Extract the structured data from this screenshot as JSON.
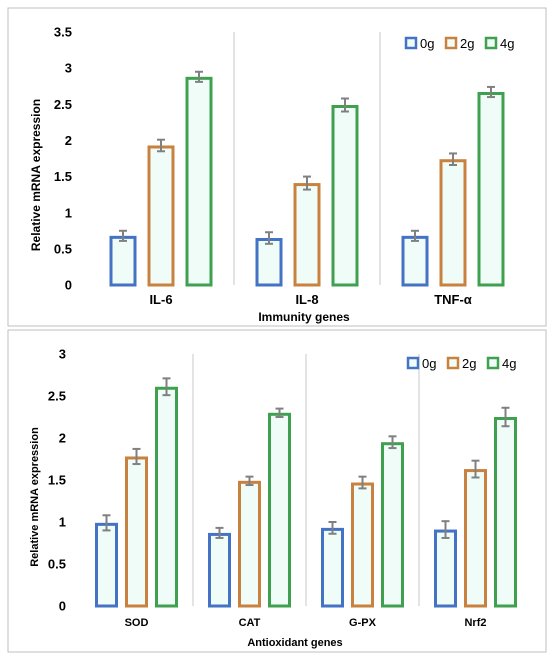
{
  "series_colors": {
    "0g": "#4472c4",
    "2g": "#c8813e",
    "4g": "#3fa04f"
  },
  "bar_fill": "#effcf8",
  "error_bar_color": "#808080",
  "divider_color": "#c8c8c8",
  "chart_data": [
    {
      "type": "bar",
      "xlabel": "Immunity genes",
      "ylabel": "Relative mRNA expression",
      "ylim": [
        0,
        3.5
      ],
      "yticks": [
        "0",
        "0.5",
        "1",
        "1.5",
        "2",
        "2.5",
        "3",
        "3.5"
      ],
      "categories": [
        "IL-6",
        "IL-8",
        "TNF-α"
      ],
      "legend": {
        "placement": "top-right",
        "entries": [
          "0g",
          "2g",
          "4g"
        ]
      },
      "series": [
        {
          "name": "0g",
          "values": [
            0.68,
            0.65,
            0.68
          ],
          "errors": [
            0.07,
            0.08,
            0.07
          ]
        },
        {
          "name": "2g",
          "values": [
            1.93,
            1.41,
            1.74
          ],
          "errors": [
            0.08,
            0.09,
            0.08
          ]
        },
        {
          "name": "4g",
          "values": [
            2.88,
            2.49,
            2.67
          ],
          "errors": [
            0.07,
            0.09,
            0.07
          ]
        }
      ]
    },
    {
      "type": "bar",
      "xlabel": "Antioxidant genes",
      "ylabel": "Relative mRNA expression",
      "ylim": [
        0,
        3
      ],
      "yticks": [
        "0",
        "0.5",
        "1",
        "1.5",
        "2",
        "2.5",
        "3"
      ],
      "categories": [
        "SOD",
        "CAT",
        "G-PX",
        "Nrf2"
      ],
      "legend": {
        "placement": "top-right",
        "entries": [
          "0g",
          "2g",
          "4g"
        ]
      },
      "series": [
        {
          "name": "0g",
          "values": [
            0.99,
            0.87,
            0.93,
            0.91
          ],
          "errors": [
            0.09,
            0.06,
            0.07,
            0.1
          ]
        },
        {
          "name": "2g",
          "values": [
            1.78,
            1.49,
            1.47,
            1.63
          ],
          "errors": [
            0.09,
            0.05,
            0.07,
            0.1
          ]
        },
        {
          "name": "4g",
          "values": [
            2.61,
            2.3,
            1.95,
            2.25
          ],
          "errors": [
            0.1,
            0.05,
            0.07,
            0.11
          ]
        }
      ]
    }
  ]
}
